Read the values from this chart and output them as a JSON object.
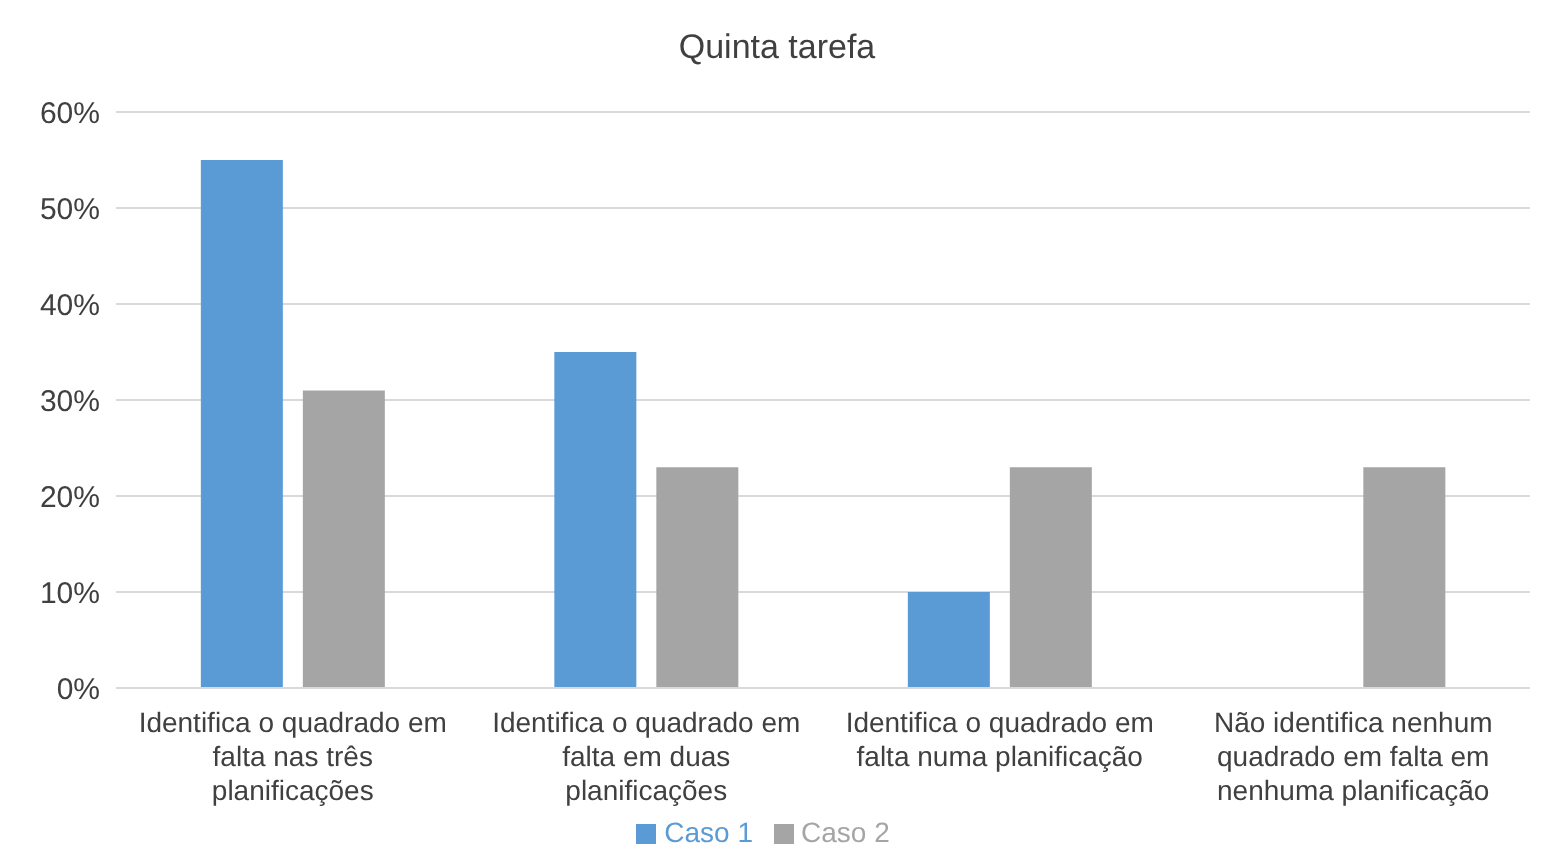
{
  "chart_data": {
    "type": "bar",
    "title": "Quinta tarefa",
    "categories": [
      "Identifica o quadrado em falta nas três planificações",
      "Identifica o quadrado em falta em duas planificações",
      "Identifica o quadrado em falta numa planificação",
      "Não identifica nenhum quadrado em falta em nenhuma planificação"
    ],
    "series": [
      {
        "name": "Caso 1",
        "color": "#5b9bd5",
        "values": [
          55,
          35,
          10,
          0
        ]
      },
      {
        "name": "Caso 2",
        "color": "#a5a5a5",
        "values": [
          31,
          23,
          23,
          23
        ]
      }
    ],
    "ylim": [
      0,
      60
    ],
    "yticks": [
      {
        "value": 0,
        "label": "0%"
      },
      {
        "value": 10,
        "label": "10%"
      },
      {
        "value": 20,
        "label": "20%"
      },
      {
        "value": 30,
        "label": "30%"
      },
      {
        "value": 40,
        "label": "40%"
      },
      {
        "value": 50,
        "label": "50%"
      },
      {
        "value": 60,
        "label": "60%"
      }
    ],
    "grid": "y",
    "legend": "bottom"
  }
}
